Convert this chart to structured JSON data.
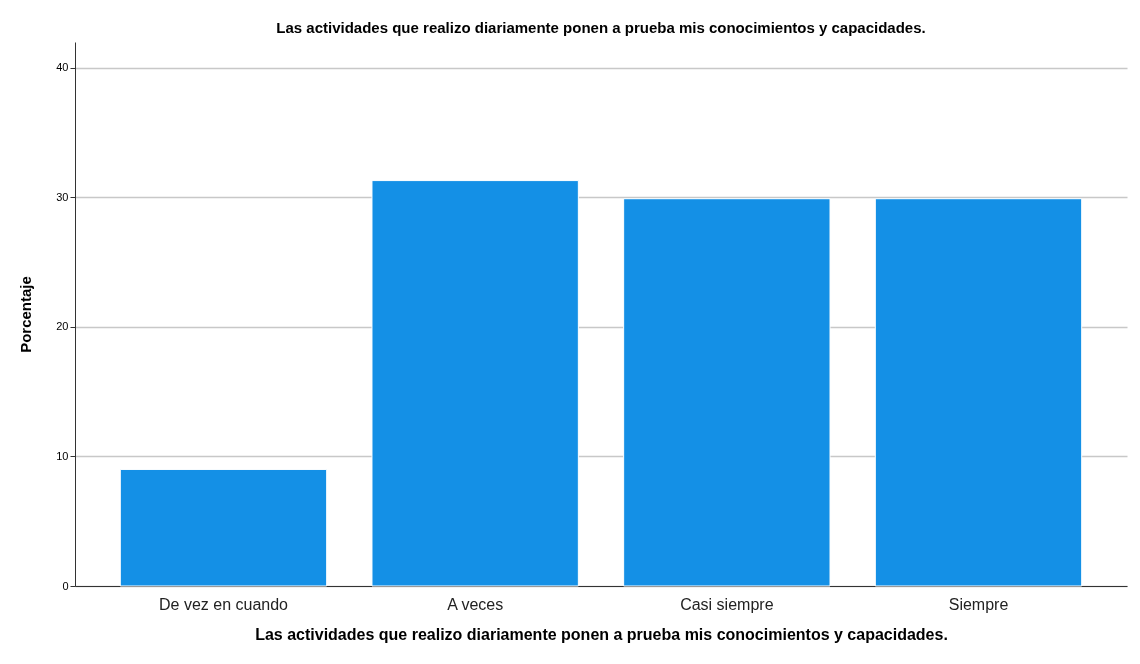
{
  "chart_data": {
    "type": "bar",
    "title": "Las actividades que realizo diariamente ponen a prueba mis conocimientos y capacidades.",
    "xlabel": "Las actividades que realizo diariamente ponen a prueba mis conocimientos y capacidades.",
    "ylabel": "Porcentaje",
    "categories": [
      "De vez en cuando",
      "A veces",
      "Casi siempre",
      "Siempre"
    ],
    "values": [
      9.0,
      31.3,
      29.9,
      29.9
    ],
    "color": "#1490e6",
    "ylim": [
      0,
      42
    ],
    "yticks": [
      0,
      10,
      20,
      30,
      40
    ],
    "grid": "y"
  }
}
